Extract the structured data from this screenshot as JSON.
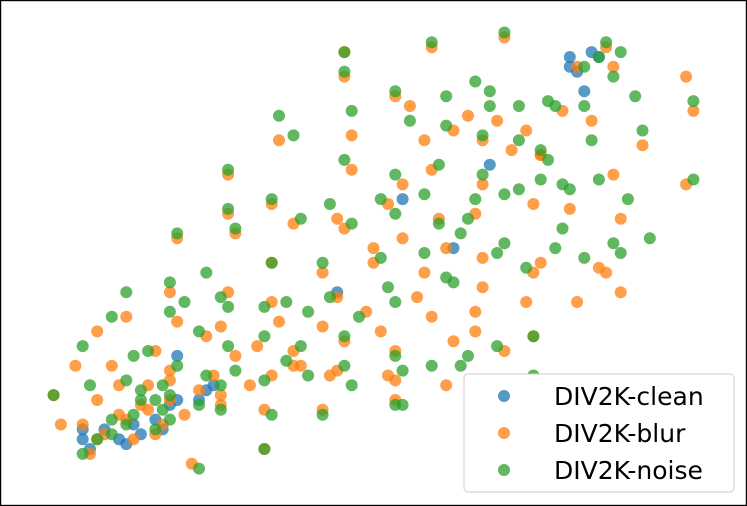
{
  "chart_data": {
    "type": "scatter",
    "title": "",
    "xlabel": "",
    "ylabel": "",
    "axes_visible": false,
    "grid": false,
    "legend_position": "bottom-right",
    "xlim": [
      0,
      100
    ],
    "ylim": [
      0,
      100
    ],
    "series": [
      {
        "name": "DIV2K-clean",
        "color": "#1f77b4",
        "points": [
          [
            77,
            90
          ],
          [
            77,
            88
          ],
          [
            78,
            87
          ],
          [
            80,
            91
          ],
          [
            81,
            90
          ],
          [
            10,
            12
          ],
          [
            11,
            10
          ],
          [
            13,
            14
          ],
          [
            15,
            12
          ],
          [
            16,
            11
          ],
          [
            17,
            15
          ],
          [
            18,
            13
          ],
          [
            20,
            16
          ],
          [
            21,
            14
          ],
          [
            22,
            19
          ],
          [
            23,
            20
          ],
          [
            10,
            14
          ],
          [
            26,
            20
          ],
          [
            27,
            22
          ],
          [
            28,
            23
          ],
          [
            54,
            61
          ],
          [
            61,
            51
          ],
          [
            66,
            68
          ],
          [
            79,
            83
          ],
          [
            45,
            42
          ],
          [
            23,
            29
          ]
        ]
      },
      {
        "name": "DIV2K-blur",
        "color": "#ff7f0e",
        "points": [
          [
            46,
            91
          ],
          [
            58,
            92
          ],
          [
            68,
            94
          ],
          [
            46,
            86
          ],
          [
            53,
            82
          ],
          [
            55,
            80
          ],
          [
            63,
            78
          ],
          [
            67,
            77
          ],
          [
            71,
            75
          ],
          [
            76,
            79
          ],
          [
            78,
            88
          ],
          [
            82,
            92
          ],
          [
            83,
            88
          ],
          [
            80,
            77
          ],
          [
            47,
            74
          ],
          [
            57,
            73
          ],
          [
            61,
            75
          ],
          [
            65,
            73
          ],
          [
            69,
            71
          ],
          [
            73,
            70
          ],
          [
            30,
            66
          ],
          [
            37,
            73
          ],
          [
            47,
            67
          ],
          [
            54,
            64
          ],
          [
            58,
            67
          ],
          [
            65,
            64
          ],
          [
            73,
            70
          ],
          [
            83,
            66
          ],
          [
            87,
            72
          ],
          [
            93,
            64
          ],
          [
            94,
            79
          ],
          [
            93,
            86
          ],
          [
            36,
            60
          ],
          [
            30,
            58
          ],
          [
            45,
            57
          ],
          [
            52,
            60
          ],
          [
            59,
            57
          ],
          [
            64,
            58
          ],
          [
            72,
            60
          ],
          [
            77,
            59
          ],
          [
            84,
            57
          ],
          [
            23,
            53
          ],
          [
            31,
            54
          ],
          [
            39,
            56
          ],
          [
            46,
            55
          ],
          [
            50,
            51
          ],
          [
            54,
            53
          ],
          [
            60,
            51
          ],
          [
            65,
            49
          ],
          [
            73,
            48
          ],
          [
            82,
            46
          ],
          [
            36,
            48
          ],
          [
            43,
            46
          ],
          [
            50,
            48
          ],
          [
            57,
            46
          ],
          [
            65,
            43
          ],
          [
            72,
            46
          ],
          [
            81,
            47
          ],
          [
            22,
            42
          ],
          [
            30,
            42
          ],
          [
            36,
            40
          ],
          [
            45,
            41
          ],
          [
            49,
            38
          ],
          [
            56,
            41
          ],
          [
            64,
            38
          ],
          [
            71,
            40
          ],
          [
            84,
            42
          ],
          [
            16,
            37
          ],
          [
            23,
            36
          ],
          [
            29,
            35
          ],
          [
            37,
            36
          ],
          [
            43,
            35
          ],
          [
            51,
            34
          ],
          [
            58,
            37
          ],
          [
            64,
            34
          ],
          [
            72,
            33
          ],
          [
            78,
            40
          ],
          [
            12,
            34
          ],
          [
            20,
            30
          ],
          [
            27,
            33
          ],
          [
            34,
            31
          ],
          [
            39,
            30
          ],
          [
            46,
            32
          ],
          [
            53,
            30
          ],
          [
            61,
            32
          ],
          [
            68,
            30
          ],
          [
            14,
            27
          ],
          [
            22,
            26
          ],
          [
            28,
            25
          ],
          [
            31,
            29
          ],
          [
            39,
            27
          ],
          [
            45,
            26
          ],
          [
            53,
            24
          ],
          [
            60,
            23
          ],
          [
            67,
            24
          ],
          [
            6,
            21
          ],
          [
            9,
            27
          ],
          [
            15,
            23
          ],
          [
            19,
            23
          ],
          [
            22,
            24
          ],
          [
            26,
            22
          ],
          [
            29,
            21
          ],
          [
            33,
            23
          ],
          [
            36,
            25
          ],
          [
            40,
            27
          ],
          [
            44,
            25
          ],
          [
            52,
            25
          ],
          [
            12,
            20
          ],
          [
            15,
            17
          ],
          [
            19,
            18
          ],
          [
            22,
            20
          ],
          [
            10,
            15
          ],
          [
            13,
            13
          ],
          [
            16,
            16
          ],
          [
            20,
            13
          ],
          [
            29,
            19
          ],
          [
            35,
            18
          ],
          [
            43,
            18
          ],
          [
            53,
            20
          ],
          [
            11,
            9
          ],
          [
            25,
            7
          ],
          [
            35,
            10
          ],
          [
            7,
            15
          ],
          [
            17,
            12
          ],
          [
            18,
            19
          ],
          [
            21,
            15
          ],
          [
            24,
            17
          ],
          [
            12,
            12
          ]
        ]
      },
      {
        "name": "DIV2K-noise",
        "color": "#2ca02c",
        "points": [
          [
            46,
            91
          ],
          [
            58,
            93
          ],
          [
            68,
            95
          ],
          [
            46,
            87
          ],
          [
            53,
            83
          ],
          [
            60,
            82
          ],
          [
            66,
            80
          ],
          [
            70,
            80
          ],
          [
            75,
            80
          ],
          [
            79,
            80
          ],
          [
            79,
            88
          ],
          [
            81,
            90
          ],
          [
            84,
            91
          ],
          [
            82,
            93
          ],
          [
            83,
            86
          ],
          [
            86,
            82
          ],
          [
            37,
            78
          ],
          [
            47,
            79
          ],
          [
            55,
            77
          ],
          [
            60,
            76
          ],
          [
            65,
            74
          ],
          [
            70,
            73
          ],
          [
            73,
            71
          ],
          [
            74,
            81
          ],
          [
            66,
            83
          ],
          [
            64,
            85
          ],
          [
            30,
            67
          ],
          [
            39,
            74
          ],
          [
            46,
            69
          ],
          [
            53,
            66
          ],
          [
            59,
            68
          ],
          [
            65,
            66
          ],
          [
            74,
            69
          ],
          [
            80,
            73
          ],
          [
            87,
            75
          ],
          [
            94,
            81
          ],
          [
            94,
            65
          ],
          [
            30,
            59
          ],
          [
            36,
            61
          ],
          [
            44,
            60
          ],
          [
            51,
            61
          ],
          [
            57,
            62
          ],
          [
            64,
            61
          ],
          [
            70,
            63
          ],
          [
            76,
            64
          ],
          [
            81,
            65
          ],
          [
            85,
            61
          ],
          [
            23,
            54
          ],
          [
            31,
            55
          ],
          [
            40,
            57
          ],
          [
            47,
            56
          ],
          [
            53,
            58
          ],
          [
            59,
            56
          ],
          [
            63,
            57
          ],
          [
            68,
            62
          ],
          [
            73,
            65
          ],
          [
            77,
            63
          ],
          [
            22,
            44
          ],
          [
            27,
            46
          ],
          [
            36,
            48
          ],
          [
            43,
            48
          ],
          [
            51,
            49
          ],
          [
            57,
            50
          ],
          [
            62,
            54
          ],
          [
            67,
            50
          ],
          [
            75,
            51
          ],
          [
            83,
            52
          ],
          [
            16,
            42
          ],
          [
            24,
            40
          ],
          [
            30,
            39
          ],
          [
            38,
            40
          ],
          [
            44,
            41
          ],
          [
            53,
            40
          ],
          [
            61,
            44
          ],
          [
            71,
            47
          ],
          [
            79,
            49
          ],
          [
            84,
            50
          ],
          [
            14,
            37
          ],
          [
            22,
            38
          ],
          [
            29,
            41
          ],
          [
            35,
            39
          ],
          [
            41,
            38
          ],
          [
            48,
            37
          ],
          [
            52,
            43
          ],
          [
            60,
            45
          ],
          [
            68,
            52
          ],
          [
            76,
            55
          ],
          [
            88,
            53
          ],
          [
            19,
            30
          ],
          [
            26,
            34
          ],
          [
            30,
            31
          ],
          [
            35,
            33
          ],
          [
            40,
            31
          ],
          [
            46,
            33
          ],
          [
            53,
            29
          ],
          [
            58,
            27
          ],
          [
            63,
            29
          ],
          [
            67,
            31
          ],
          [
            72,
            33
          ],
          [
            10,
            31
          ],
          [
            17,
            29
          ],
          [
            23,
            27
          ],
          [
            27,
            25
          ],
          [
            31,
            26
          ],
          [
            38,
            28
          ],
          [
            46,
            27
          ],
          [
            54,
            26
          ],
          [
            62,
            27
          ],
          [
            72,
            25
          ],
          [
            6,
            21
          ],
          [
            11,
            23
          ],
          [
            16,
            24
          ],
          [
            18,
            20
          ],
          [
            22,
            21
          ],
          [
            26,
            19
          ],
          [
            29,
            23
          ],
          [
            35,
            24
          ],
          [
            41,
            25
          ],
          [
            47,
            23
          ],
          [
            53,
            19
          ],
          [
            14,
            16
          ],
          [
            17,
            17
          ],
          [
            21,
            18
          ],
          [
            12,
            12
          ],
          [
            14,
            13
          ],
          [
            16,
            15
          ],
          [
            20,
            14
          ],
          [
            22,
            16
          ],
          [
            29,
            18
          ],
          [
            36,
            17
          ],
          [
            43,
            17
          ],
          [
            54,
            19
          ],
          [
            10,
            9
          ],
          [
            26,
            6
          ],
          [
            35,
            10
          ],
          [
            18,
            22
          ],
          [
            20,
            20
          ],
          [
            21,
            23
          ]
        ]
      }
    ]
  }
}
